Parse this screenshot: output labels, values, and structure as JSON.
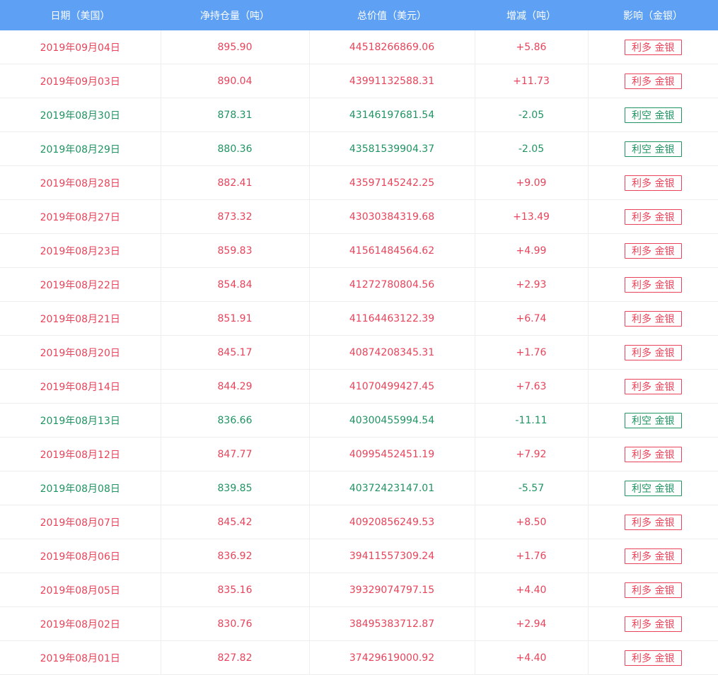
{
  "colors": {
    "header_bg": "#5ea0f3",
    "up": "#e8435a",
    "down": "#1f9462"
  },
  "table": {
    "headers": [
      "日期（美国）",
      "净持仓量（吨）",
      "总价值（美元）",
      "增减（吨）",
      "影响（金银）"
    ],
    "rows": [
      {
        "date": "2019年09月04日",
        "holding": "895.90",
        "value": "44518266869.06",
        "change": "+5.86",
        "impact": "利多 金银",
        "direction": "up"
      },
      {
        "date": "2019年09月03日",
        "holding": "890.04",
        "value": "43991132588.31",
        "change": "+11.73",
        "impact": "利多 金银",
        "direction": "up"
      },
      {
        "date": "2019年08月30日",
        "holding": "878.31",
        "value": "43146197681.54",
        "change": "-2.05",
        "impact": "利空 金银",
        "direction": "down"
      },
      {
        "date": "2019年08月29日",
        "holding": "880.36",
        "value": "43581539904.37",
        "change": "-2.05",
        "impact": "利空 金银",
        "direction": "down"
      },
      {
        "date": "2019年08月28日",
        "holding": "882.41",
        "value": "43597145242.25",
        "change": "+9.09",
        "impact": "利多 金银",
        "direction": "up"
      },
      {
        "date": "2019年08月27日",
        "holding": "873.32",
        "value": "43030384319.68",
        "change": "+13.49",
        "impact": "利多 金银",
        "direction": "up"
      },
      {
        "date": "2019年08月23日",
        "holding": "859.83",
        "value": "41561484564.62",
        "change": "+4.99",
        "impact": "利多 金银",
        "direction": "up"
      },
      {
        "date": "2019年08月22日",
        "holding": "854.84",
        "value": "41272780804.56",
        "change": "+2.93",
        "impact": "利多 金银",
        "direction": "up"
      },
      {
        "date": "2019年08月21日",
        "holding": "851.91",
        "value": "41164463122.39",
        "change": "+6.74",
        "impact": "利多 金银",
        "direction": "up"
      },
      {
        "date": "2019年08月20日",
        "holding": "845.17",
        "value": "40874208345.31",
        "change": "+1.76",
        "impact": "利多 金银",
        "direction": "up"
      },
      {
        "date": "2019年08月14日",
        "holding": "844.29",
        "value": "41070499427.45",
        "change": "+7.63",
        "impact": "利多 金银",
        "direction": "up"
      },
      {
        "date": "2019年08月13日",
        "holding": "836.66",
        "value": "40300455994.54",
        "change": "-11.11",
        "impact": "利空 金银",
        "direction": "down"
      },
      {
        "date": "2019年08月12日",
        "holding": "847.77",
        "value": "40995452451.19",
        "change": "+7.92",
        "impact": "利多 金银",
        "direction": "up"
      },
      {
        "date": "2019年08月08日",
        "holding": "839.85",
        "value": "40372423147.01",
        "change": "-5.57",
        "impact": "利空 金银",
        "direction": "down"
      },
      {
        "date": "2019年08月07日",
        "holding": "845.42",
        "value": "40920856249.53",
        "change": "+8.50",
        "impact": "利多 金银",
        "direction": "up"
      },
      {
        "date": "2019年08月06日",
        "holding": "836.92",
        "value": "39411557309.24",
        "change": "+1.76",
        "impact": "利多 金银",
        "direction": "up"
      },
      {
        "date": "2019年08月05日",
        "holding": "835.16",
        "value": "39329074797.15",
        "change": "+4.40",
        "impact": "利多 金银",
        "direction": "up"
      },
      {
        "date": "2019年08月02日",
        "holding": "830.76",
        "value": "38495383712.87",
        "change": "+2.94",
        "impact": "利多 金银",
        "direction": "up"
      },
      {
        "date": "2019年08月01日",
        "holding": "827.82",
        "value": "37429619000.92",
        "change": "+4.40",
        "impact": "利多 金银",
        "direction": "up"
      }
    ]
  }
}
